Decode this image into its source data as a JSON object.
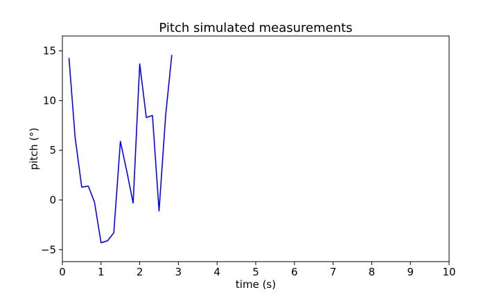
{
  "chart_data": {
    "type": "line",
    "title": "Pitch simulated measurements",
    "xlabel": "time (s)",
    "ylabel": "pitch (°)",
    "xlim": [
      0,
      10
    ],
    "ylim": [
      -6.2,
      16.5
    ],
    "xticks": [
      0,
      1,
      2,
      3,
      4,
      5,
      6,
      7,
      8,
      9,
      10
    ],
    "xtick_labels": [
      "0",
      "1",
      "2",
      "3",
      "4",
      "5",
      "6",
      "7",
      "8",
      "9",
      "10"
    ],
    "yticks": [
      -5,
      0,
      5,
      10,
      15
    ],
    "ytick_labels": [
      "−5",
      "0",
      "5",
      "10",
      "15"
    ],
    "grid": false,
    "line_color": "#0000ff",
    "series": [
      {
        "x": [
          0.17,
          0.33,
          0.5,
          0.67,
          0.83,
          1.0,
          1.17,
          1.33,
          1.5,
          1.67,
          1.83,
          2.0,
          2.17,
          2.33,
          2.5,
          2.67,
          2.83
        ],
        "values": [
          14.3,
          6.3,
          1.3,
          1.4,
          -0.2,
          -4.3,
          -4.1,
          -3.3,
          5.9,
          2.8,
          -0.3,
          13.7,
          8.3,
          8.5,
          -1.1,
          8.5,
          14.6
        ]
      }
    ]
  }
}
